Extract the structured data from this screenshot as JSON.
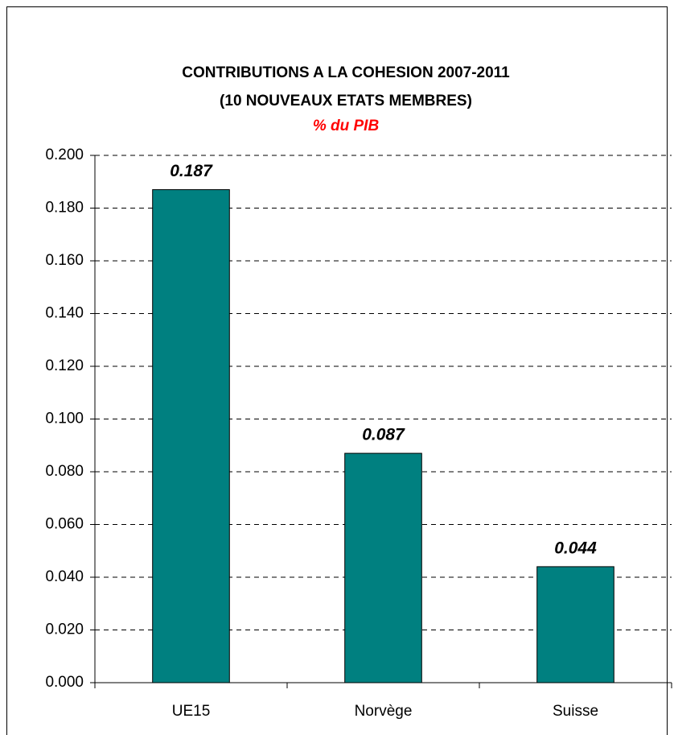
{
  "chart_data": {
    "type": "bar",
    "title": [
      "CONTRIBUTIONS A LA COHESION 2007-2011",
      "(10 NOUVEAUX ETATS MEMBRES)"
    ],
    "subtitle": "% du PIB",
    "subtitle_color": "#ff0000",
    "categories": [
      "UE15",
      "Norvège",
      "Suisse"
    ],
    "values": [
      0.187,
      0.087,
      0.044
    ],
    "color": "#008080",
    "ylim": [
      0,
      0.2
    ],
    "yticks": [
      {
        "value": 0,
        "label": "0.000"
      },
      {
        "value": 0.02,
        "label": "0.020"
      },
      {
        "value": 0.04,
        "label": "0.040"
      },
      {
        "value": 0.06,
        "label": "0.060"
      },
      {
        "value": 0.08,
        "label": "0.080"
      },
      {
        "value": 0.1,
        "label": "0.100"
      },
      {
        "value": 0.12,
        "label": "0.120"
      },
      {
        "value": 0.14,
        "label": "0.140"
      },
      {
        "value": 0.16,
        "label": "0.160"
      },
      {
        "value": 0.18,
        "label": "0.180"
      },
      {
        "value": 0.2,
        "label": "0.200"
      }
    ],
    "grid": true
  }
}
